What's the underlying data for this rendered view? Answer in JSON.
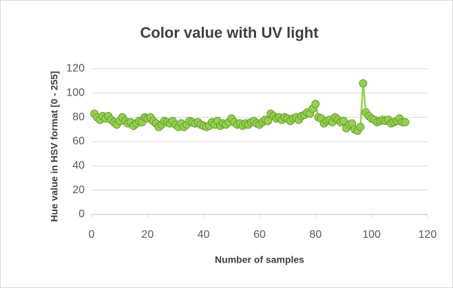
{
  "chart_data": {
    "type": "line",
    "title": "Color value with UV light",
    "xlabel": "Number of samples",
    "ylabel": "Hue value in HSV format [0 - 255]",
    "x": [
      1,
      2,
      3,
      4,
      5,
      6,
      7,
      8,
      9,
      10,
      11,
      12,
      13,
      14,
      15,
      16,
      17,
      18,
      19,
      20,
      21,
      22,
      23,
      24,
      25,
      26,
      27,
      28,
      29,
      30,
      31,
      32,
      33,
      34,
      35,
      36,
      37,
      38,
      39,
      40,
      41,
      42,
      43,
      44,
      45,
      46,
      47,
      48,
      49,
      50,
      51,
      52,
      53,
      54,
      55,
      56,
      57,
      58,
      59,
      60,
      61,
      62,
      63,
      64,
      65,
      66,
      67,
      68,
      69,
      70,
      71,
      72,
      73,
      74,
      75,
      76,
      77,
      78,
      79,
      80,
      81,
      82,
      83,
      84,
      85,
      86,
      87,
      88,
      89,
      90,
      91,
      92,
      93,
      94,
      95,
      96,
      97,
      98,
      99,
      100,
      101,
      102,
      103,
      104,
      105,
      106,
      107,
      108,
      109,
      110,
      111,
      112
    ],
    "values": [
      83,
      80,
      78,
      81,
      79,
      81,
      78,
      76,
      74,
      77,
      80,
      77,
      75,
      76,
      73,
      75,
      77,
      76,
      80,
      79,
      80,
      77,
      75,
      72,
      74,
      77,
      76,
      75,
      77,
      74,
      72,
      75,
      72,
      74,
      77,
      76,
      75,
      76,
      74,
      73,
      72,
      73,
      76,
      74,
      77,
      73,
      75,
      74,
      76,
      79,
      76,
      74,
      75,
      73,
      75,
      74,
      76,
      77,
      75,
      74,
      76,
      78,
      77,
      83,
      81,
      79,
      80,
      78,
      80,
      79,
      77,
      79,
      80,
      78,
      81,
      82,
      84,
      83,
      87,
      91,
      80,
      79,
      75,
      77,
      78,
      76,
      80,
      78,
      76,
      77,
      71,
      74,
      75,
      70,
      69,
      72,
      108,
      84,
      81,
      79,
      78,
      76,
      77,
      78,
      77,
      78,
      75,
      76,
      77,
      79,
      76,
      76
    ],
    "color": "#92d050",
    "xlim": [
      0,
      120
    ],
    "xticks": [
      0,
      20,
      40,
      60,
      80,
      100,
      120
    ],
    "ylim": [
      0,
      120
    ],
    "yticks": [
      0,
      20,
      40,
      60,
      80,
      100,
      120
    ],
    "grid": true
  }
}
